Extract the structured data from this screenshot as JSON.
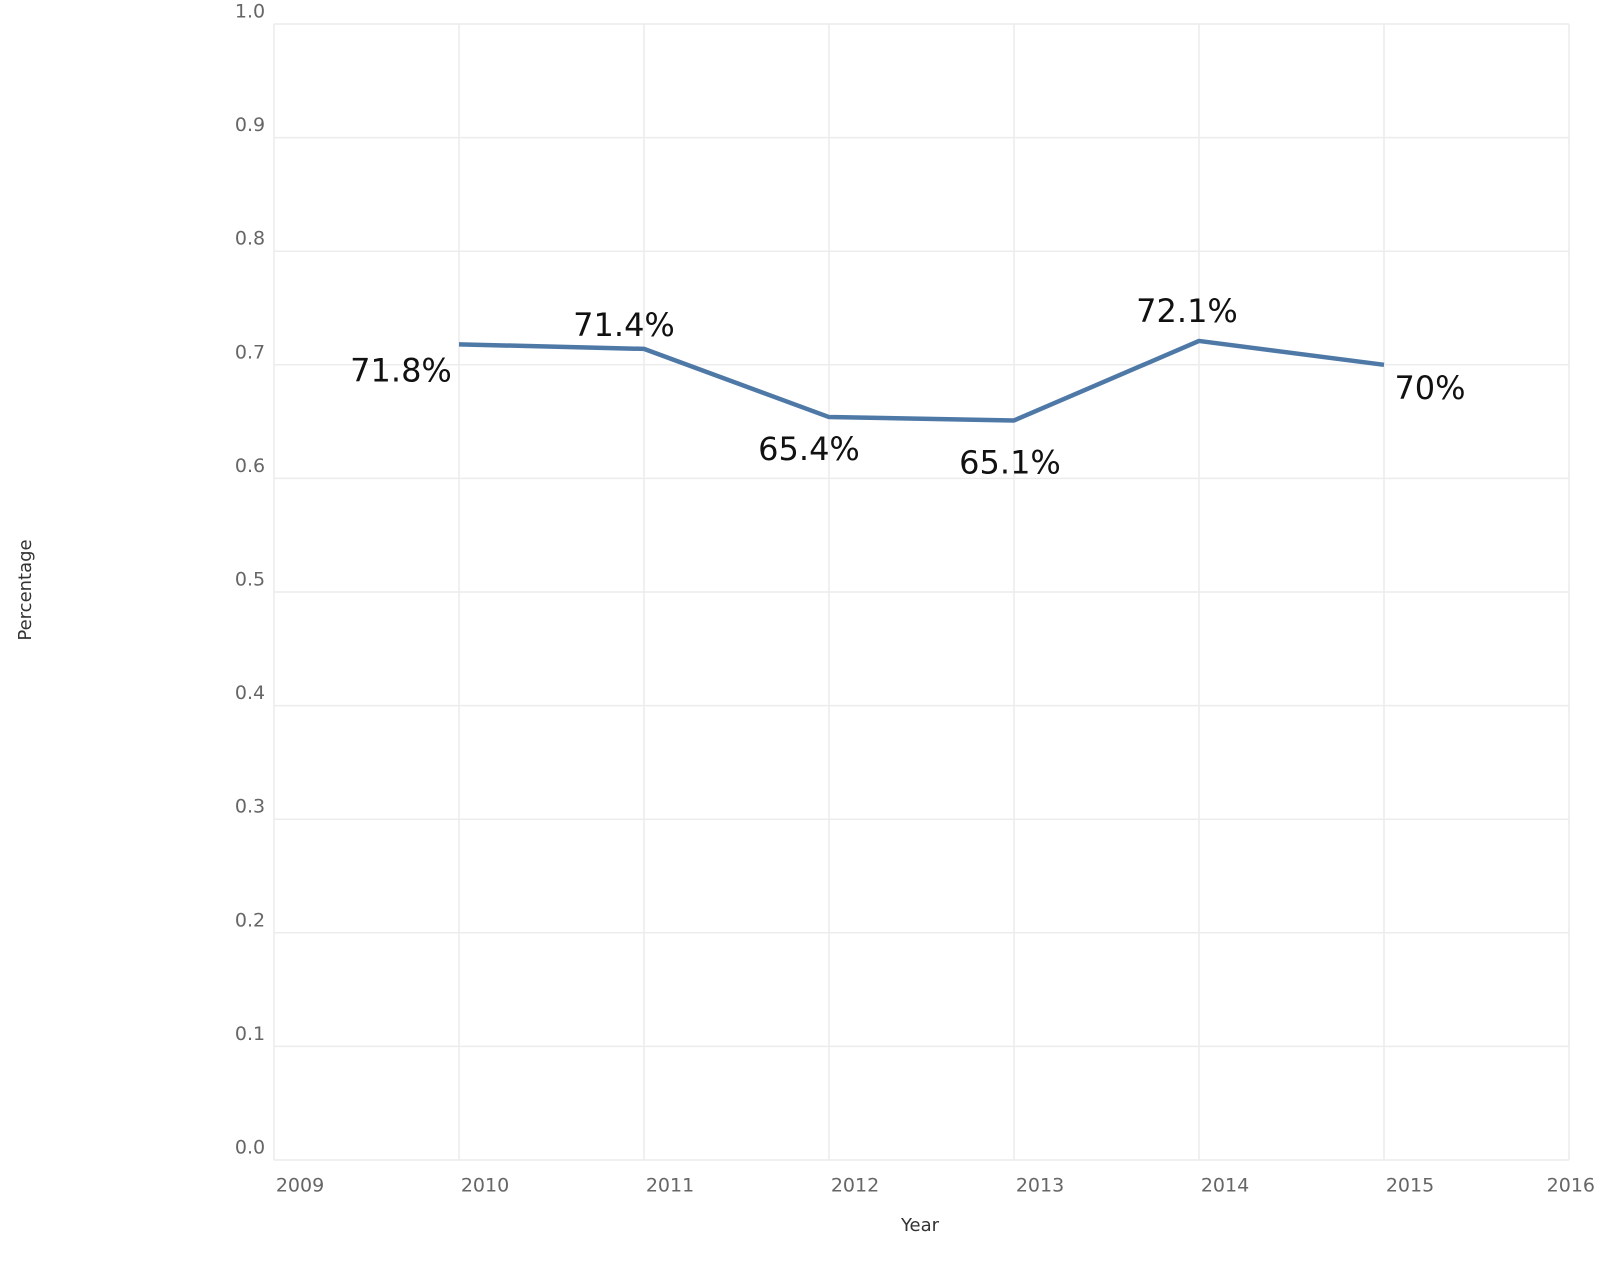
{
  "chart_data": {
    "type": "line",
    "x_label": "Year",
    "y_label": "Percentage",
    "x": [
      2010,
      2011,
      2012,
      2013,
      2014,
      2015
    ],
    "values": [
      0.718,
      0.714,
      0.654,
      0.651,
      0.721,
      0.7
    ],
    "value_labels": [
      "71.8%",
      "71.4%",
      "65.4%",
      "65.1%",
      "72.1%",
      "70%"
    ],
    "color": "#4e79a7",
    "xlim": [
      2009,
      2016
    ],
    "xticks": [
      2009,
      2010,
      2011,
      2012,
      2013,
      2014,
      2015,
      2016
    ],
    "ylim": [
      0,
      1
    ],
    "yticks": [
      {
        "value": 0,
        "label": "0.0"
      },
      0.1,
      0.2,
      0.3,
      0.4,
      0.5,
      0.6,
      0.7,
      0.8,
      0.9,
      {
        "value": 1,
        "label": "1.0"
      }
    ],
    "grid": true
  }
}
